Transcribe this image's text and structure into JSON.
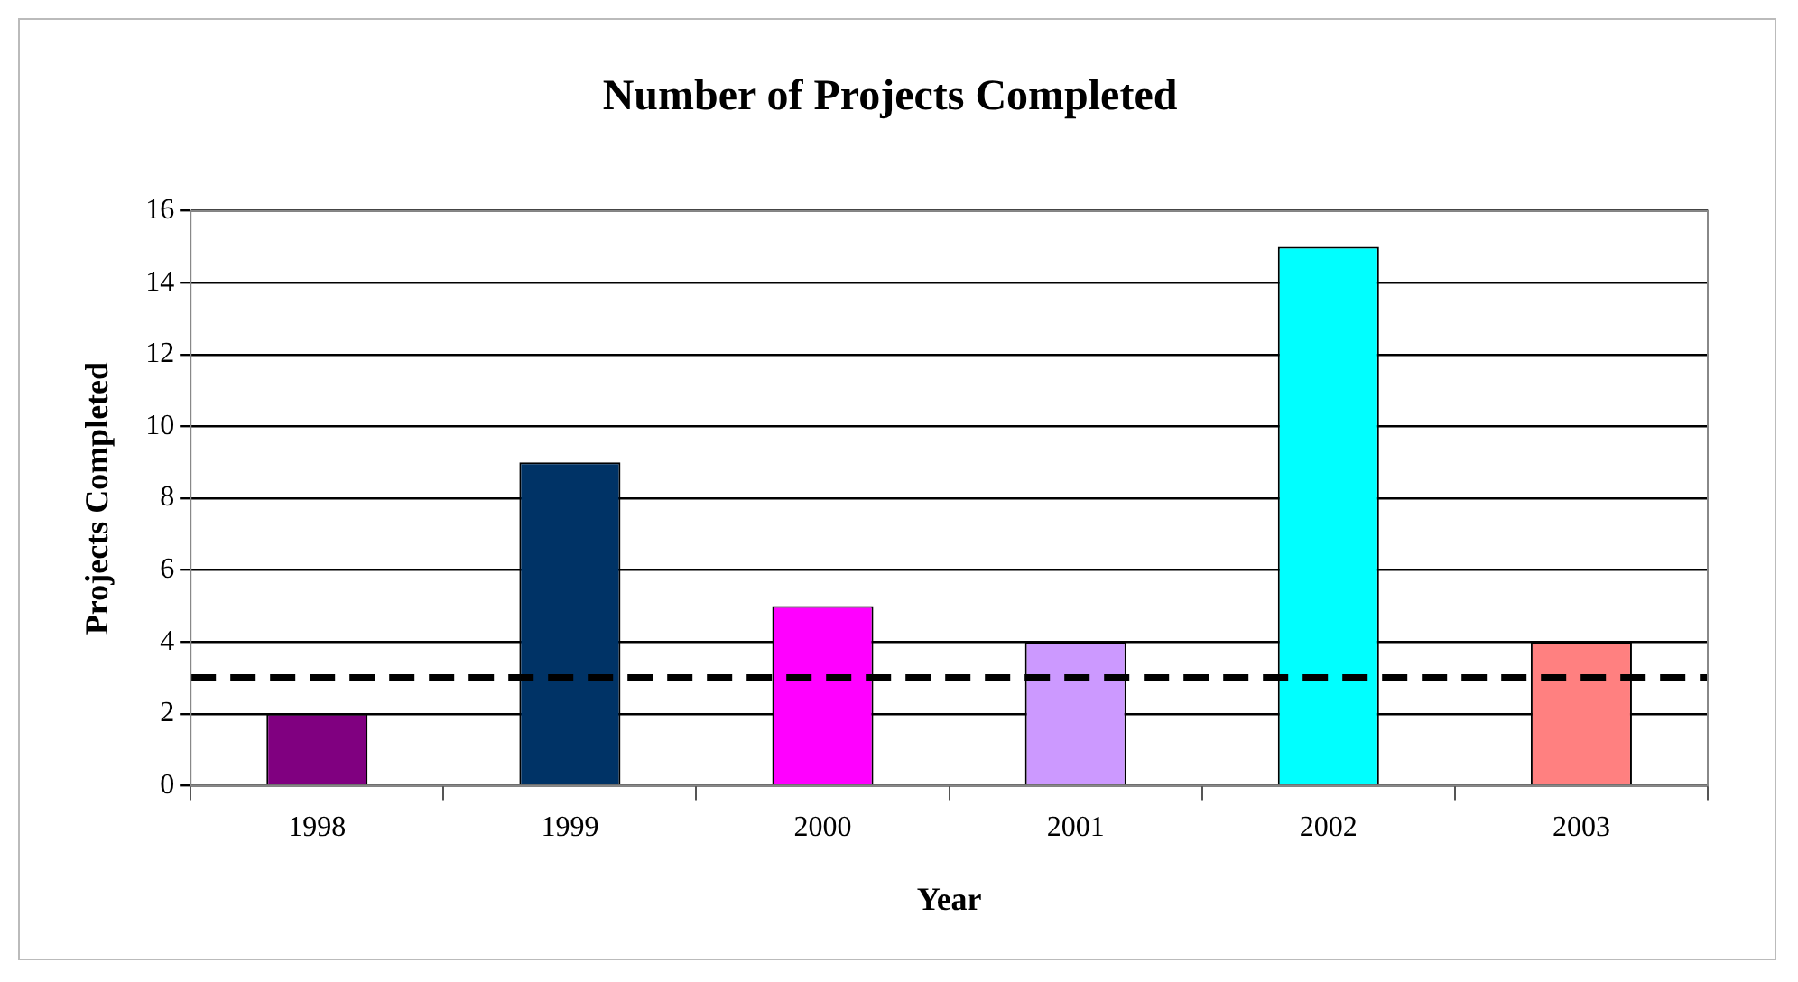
{
  "chart_data": {
    "type": "bar",
    "title": "Number of Projects Completed",
    "xlabel": "Year",
    "ylabel": "Projects Completed",
    "categories": [
      "1998",
      "1999",
      "2000",
      "2001",
      "2002",
      "2003"
    ],
    "values": [
      2,
      9,
      5,
      4,
      15,
      4
    ],
    "colors": [
      "#800080",
      "#003366",
      "#ff00ff",
      "#cc99ff",
      "#00ffff",
      "#ff8080"
    ],
    "ylim": [
      0,
      16
    ],
    "yticks": [
      0,
      2,
      4,
      6,
      8,
      10,
      12,
      14,
      16
    ],
    "grid": "y",
    "legend": false,
    "ref_lines": [
      {
        "axis": "y",
        "value": 3,
        "color": "#000000",
        "line_style": "dashed"
      }
    ]
  }
}
